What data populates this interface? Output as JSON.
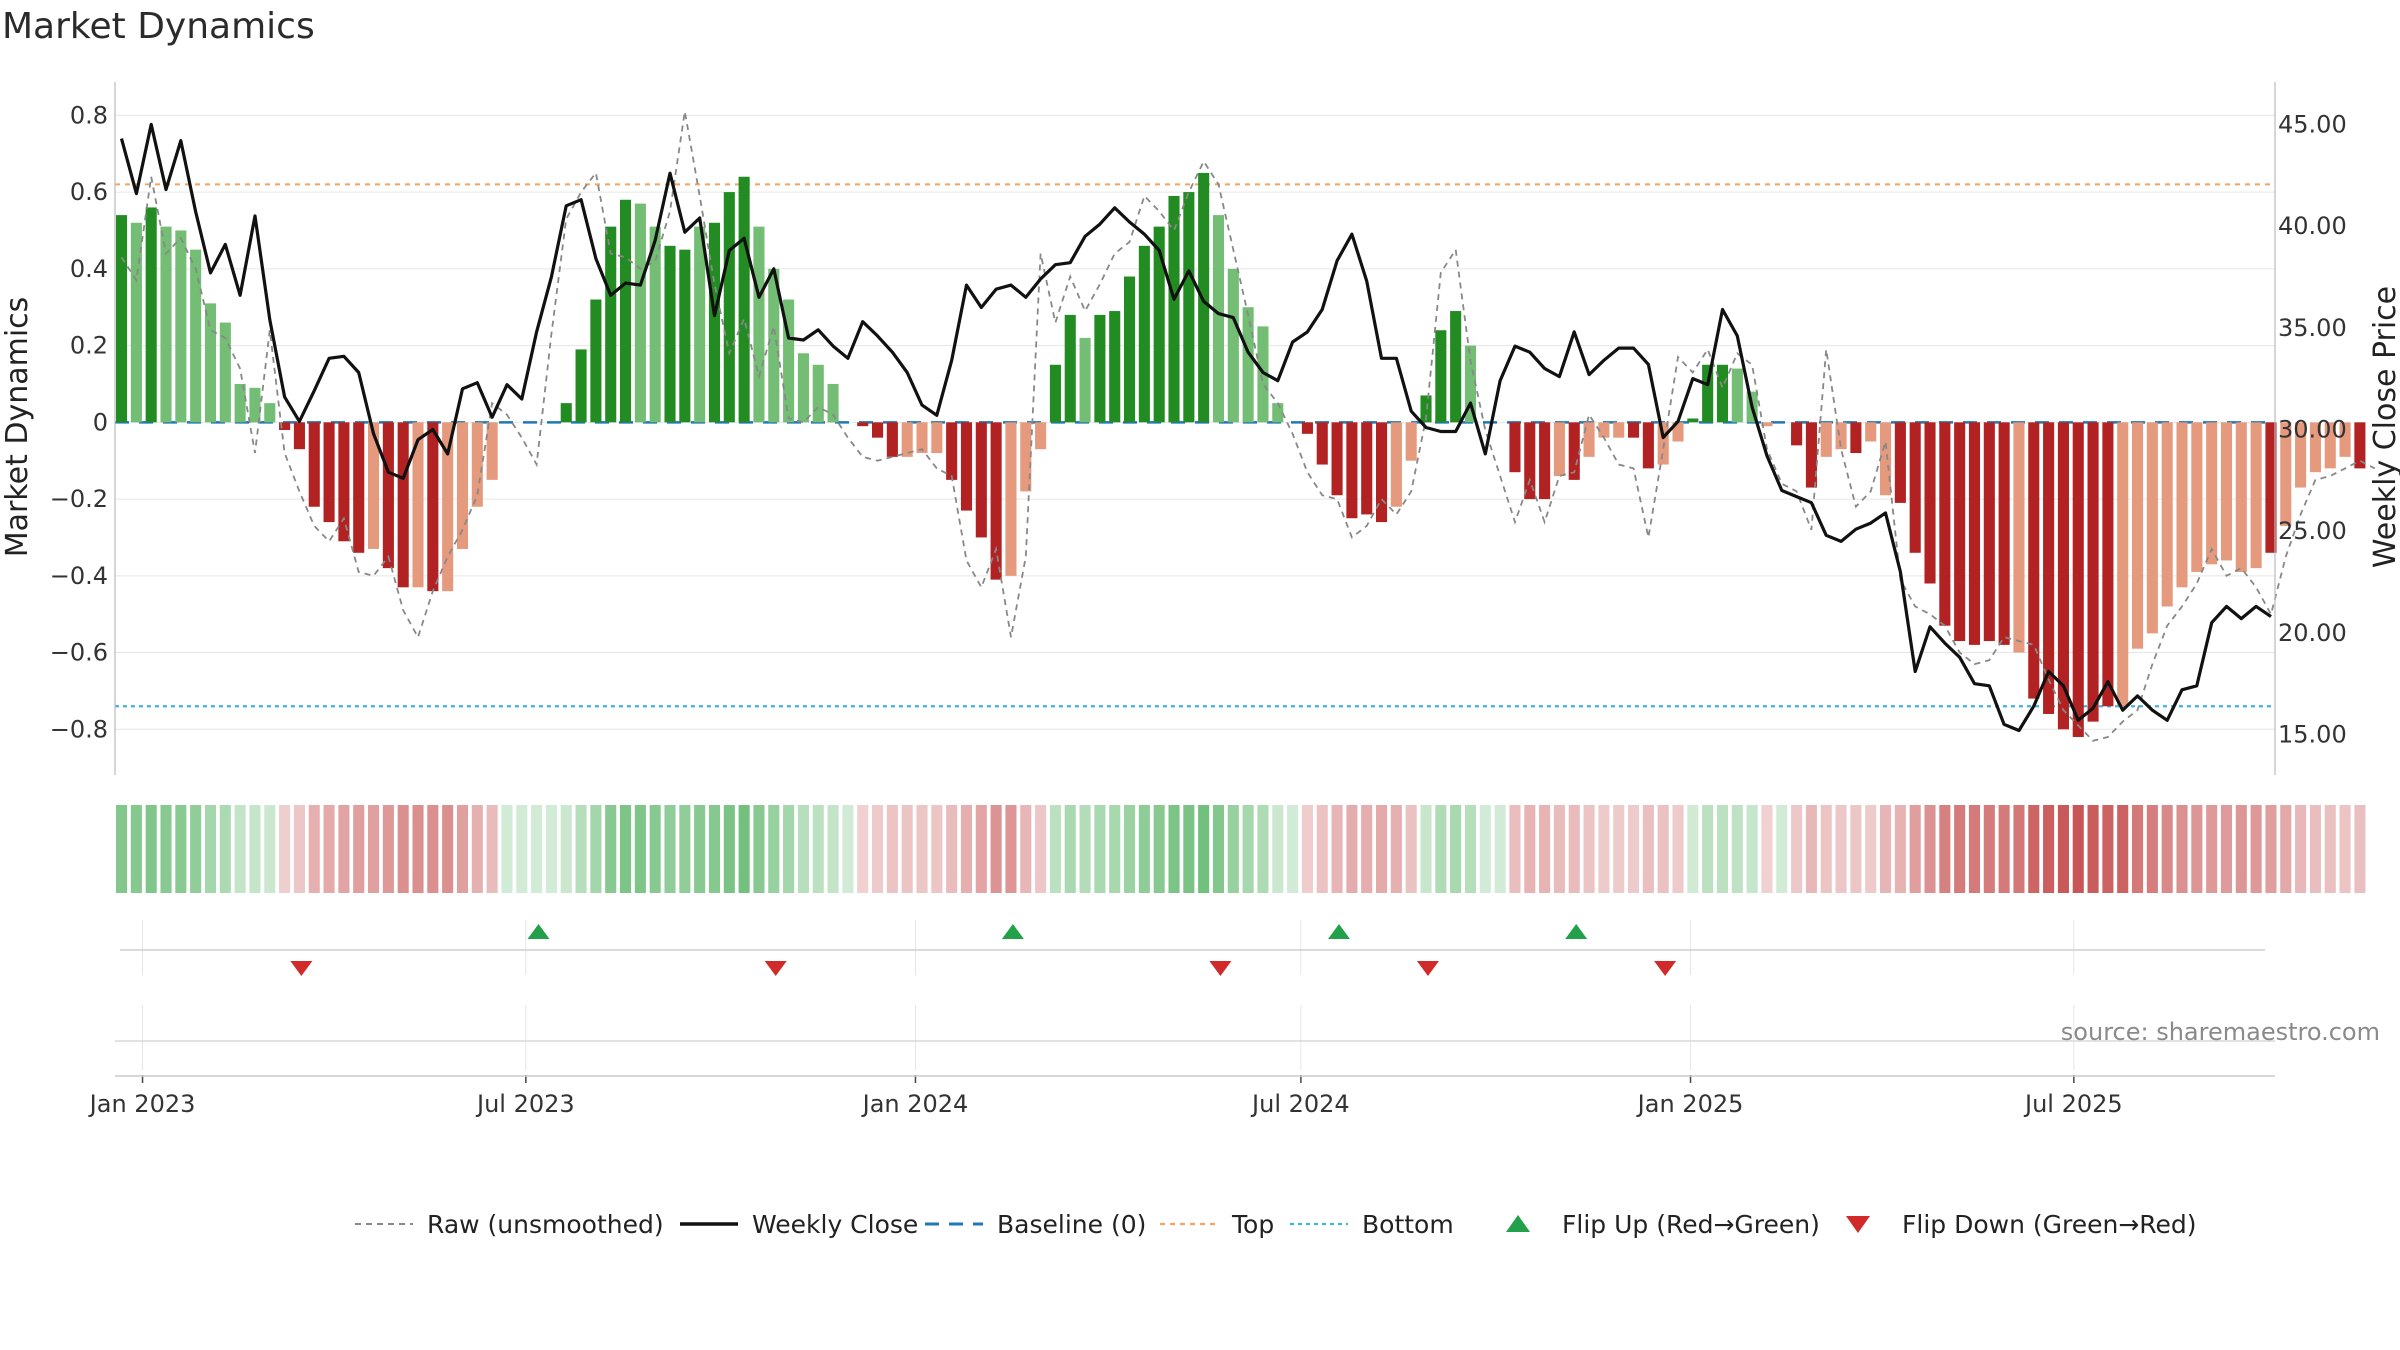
{
  "title": "Market Dynamics",
  "source": "source: sharemaestro.com",
  "chart_data": {
    "type": "bar",
    "ylabel_left": "Market Dynamics",
    "ylabel_right": "Weekly Close Price",
    "ylim_left": [
      -0.88,
      0.84
    ],
    "ylim_right": [
      13.75,
      46.2
    ],
    "yticks_left": [
      0.8,
      0.6,
      0.4,
      0.2,
      0,
      -0.2,
      -0.4,
      -0.6,
      -0.8
    ],
    "ytick_labels_left": [
      "0.8",
      "0.6",
      "0.4",
      "0.2",
      "0",
      "−0.2",
      "−0.4",
      "−0.6",
      "−0.8"
    ],
    "yticks_right": [
      45,
      40,
      35,
      30,
      25,
      20,
      15
    ],
    "ytick_labels_right": [
      "45.00",
      "40.00",
      "35.00",
      "30.00",
      "25.00",
      "20.00",
      "15.00"
    ],
    "x_start": "2022-12-19",
    "x_step_days": 7,
    "x_end": "2025-10-04",
    "xtick_dates": [
      "2023-01-01",
      "2023-07-01",
      "2024-01-01",
      "2024-07-01",
      "2025-01-01",
      "2025-07-01"
    ],
    "xtick_labels": [
      "Jan 2023",
      "Jul 2023",
      "Jan 2024",
      "Jul 2024",
      "Jan 2025",
      "Jul 2025"
    ],
    "grid": true,
    "reference_lines": {
      "baseline": 0,
      "top": 0.62,
      "bottom": -0.74
    },
    "colors": {
      "strong_green": "#228b22",
      "light_green": "#74bd74",
      "strong_red": "#b22222",
      "light_red": "#e59a7e",
      "weekly_close": "#111111",
      "raw": "#888888",
      "baseline": "#1f77b4",
      "top": "#f4a460",
      "bottom": "#40b4e0",
      "flip_up": "#22a04a",
      "flip_down": "#d02a2a"
    },
    "bar_values": [
      0.54,
      0.52,
      0.56,
      0.51,
      0.5,
      0.45,
      0.31,
      0.26,
      0.1,
      0.09,
      0.05,
      -0.02,
      -0.07,
      -0.22,
      -0.26,
      -0.31,
      -0.34,
      -0.33,
      -0.38,
      -0.43,
      -0.43,
      -0.44,
      -0.44,
      -0.33,
      -0.22,
      -0.15,
      0.0,
      0.0,
      0.0,
      0.0,
      0.05,
      0.19,
      0.32,
      0.51,
      0.58,
      0.57,
      0.51,
      0.46,
      0.45,
      0.51,
      0.52,
      0.6,
      0.64,
      0.51,
      0.4,
      0.32,
      0.18,
      0.15,
      0.1,
      0.0,
      -0.01,
      -0.04,
      -0.09,
      -0.09,
      -0.08,
      -0.08,
      -0.15,
      -0.23,
      -0.3,
      -0.41,
      -0.4,
      -0.18,
      -0.07,
      0.15,
      0.28,
      0.22,
      0.28,
      0.29,
      0.38,
      0.46,
      0.51,
      0.59,
      0.6,
      0.65,
      0.54,
      0.4,
      0.3,
      0.25,
      0.05,
      0.0,
      -0.03,
      -0.11,
      -0.19,
      -0.25,
      -0.24,
      -0.26,
      -0.22,
      -0.1,
      0.07,
      0.24,
      0.29,
      0.2,
      0.0,
      0.0,
      -0.13,
      -0.2,
      -0.2,
      -0.14,
      -0.15,
      -0.09,
      -0.04,
      -0.04,
      -0.04,
      -0.12,
      -0.11,
      -0.05,
      0.01,
      0.15,
      0.15,
      0.14,
      0.08,
      -0.01,
      0.0,
      -0.06,
      -0.17,
      -0.09,
      -0.07,
      -0.08,
      -0.05,
      -0.19,
      -0.21,
      -0.34,
      -0.42,
      -0.53,
      -0.57,
      -0.58,
      -0.57,
      -0.58,
      -0.6,
      -0.72,
      -0.76,
      -0.8,
      -0.82,
      -0.78,
      -0.74,
      -0.74,
      -0.59,
      -0.55,
      -0.48,
      -0.43,
      -0.39,
      -0.37,
      -0.36,
      -0.39,
      -0.38,
      -0.34,
      -0.27,
      -0.17,
      -0.13,
      -0.12,
      -0.09,
      -0.12
    ],
    "bar_strong": [
      1,
      0,
      1,
      0,
      0,
      0,
      0,
      0,
      0,
      0,
      0,
      1,
      1,
      1,
      1,
      1,
      1,
      0,
      1,
      1,
      0,
      1,
      0,
      0,
      0,
      0,
      0,
      0,
      0,
      0,
      1,
      1,
      1,
      1,
      1,
      0,
      0,
      1,
      1,
      0,
      1,
      1,
      1,
      0,
      0,
      0,
      0,
      0,
      0,
      0,
      1,
      1,
      1,
      0,
      0,
      0,
      1,
      1,
      1,
      1,
      0,
      0,
      0,
      1,
      1,
      0,
      1,
      1,
      1,
      1,
      1,
      1,
      1,
      1,
      0,
      0,
      0,
      0,
      0,
      0,
      1,
      1,
      1,
      1,
      1,
      1,
      0,
      0,
      1,
      1,
      1,
      0,
      0,
      0,
      1,
      1,
      1,
      0,
      1,
      0,
      0,
      0,
      1,
      1,
      0,
      0,
      1,
      1,
      1,
      0,
      0,
      0,
      0,
      1,
      1,
      0,
      0,
      1,
      0,
      0,
      1,
      1,
      1,
      1,
      1,
      1,
      1,
      1,
      0,
      1,
      1,
      1,
      1,
      1,
      1,
      0,
      0,
      0,
      0,
      0,
      0,
      0,
      0,
      0,
      0,
      1,
      0,
      0,
      0,
      0,
      0,
      1
    ],
    "weekly_close": [
      44.3,
      41.6,
      45.0,
      41.8,
      44.2,
      40.7,
      37.7,
      39.1,
      36.6,
      40.5,
      35.4,
      31.6,
      30.4,
      31.9,
      33.5,
      33.6,
      32.8,
      29.8,
      27.9,
      27.6,
      29.5,
      30.0,
      28.8,
      32.0,
      32.3,
      30.6,
      32.2,
      31.5,
      34.8,
      37.5,
      41.0,
      41.3,
      38.4,
      36.6,
      37.2,
      37.1,
      39.3,
      42.6,
      39.7,
      40.4,
      35.6,
      38.8,
      39.4,
      36.5,
      37.9,
      34.5,
      34.4,
      34.9,
      34.1,
      33.5,
      35.3,
      34.6,
      33.8,
      32.8,
      31.2,
      30.7,
      33.4,
      37.1,
      36.0,
      36.9,
      37.1,
      36.5,
      37.4,
      38.1,
      38.2,
      39.5,
      40.1,
      40.9,
      40.2,
      39.6,
      38.8,
      36.4,
      37.8,
      36.3,
      35.7,
      35.5,
      33.8,
      32.8,
      32.4,
      34.3,
      34.8,
      35.9,
      38.3,
      39.6,
      37.3,
      33.5,
      33.5,
      30.9,
      30.1,
      29.9,
      29.9,
      31.3,
      28.8,
      32.4,
      34.1,
      33.8,
      33.0,
      32.6,
      34.8,
      32.7,
      33.4,
      34.0,
      34.0,
      33.2,
      29.6,
      30.4,
      32.5,
      32.2,
      35.9,
      34.6,
      31.1,
      28.7,
      27.0,
      26.7,
      26.4,
      24.8,
      24.5,
      25.1,
      25.4,
      25.9,
      23.0,
      18.1,
      20.3,
      19.5,
      18.8,
      17.5,
      17.4,
      15.5,
      15.2,
      16.4,
      18.1,
      17.4,
      15.7,
      16.3,
      17.6,
      16.2,
      16.9,
      16.2,
      15.7,
      17.2,
      17.4,
      20.5,
      21.3,
      20.7,
      21.3,
      20.8
    ],
    "raw": [
      0.43,
      0.37,
      0.64,
      0.44,
      0.48,
      0.4,
      0.24,
      0.22,
      0.14,
      -0.08,
      0.24,
      -0.08,
      -0.18,
      -0.27,
      -0.31,
      -0.25,
      -0.39,
      -0.4,
      -0.35,
      -0.49,
      -0.56,
      -0.44,
      -0.35,
      -0.28,
      -0.19,
      0.05,
      0.02,
      -0.04,
      -0.11,
      0.23,
      0.53,
      0.6,
      0.65,
      0.44,
      0.43,
      0.4,
      0.42,
      0.55,
      0.81,
      0.59,
      0.36,
      0.18,
      0.27,
      0.12,
      0.25,
      0.01,
      0.0,
      0.04,
      0.02,
      -0.04,
      -0.09,
      -0.1,
      -0.09,
      -0.08,
      -0.07,
      -0.12,
      -0.14,
      -0.36,
      -0.43,
      -0.33,
      -0.56,
      -0.35,
      0.44,
      0.26,
      0.38,
      0.29,
      0.36,
      0.44,
      0.47,
      0.59,
      0.55,
      0.5,
      0.6,
      0.68,
      0.62,
      0.45,
      0.28,
      0.1,
      0.05,
      -0.03,
      -0.13,
      -0.19,
      -0.2,
      -0.3,
      -0.27,
      -0.2,
      -0.24,
      -0.18,
      0.01,
      0.39,
      0.45,
      0.16,
      -0.02,
      -0.14,
      -0.26,
      -0.15,
      -0.26,
      -0.14,
      -0.13,
      0.02,
      -0.04,
      -0.11,
      -0.12,
      -0.3,
      -0.07,
      0.17,
      0.13,
      0.19,
      0.09,
      0.18,
      0.15,
      -0.07,
      -0.16,
      -0.18,
      -0.28,
      0.19,
      -0.07,
      -0.22,
      -0.18,
      -0.05,
      -0.41,
      -0.48,
      -0.5,
      -0.53,
      -0.6,
      -0.63,
      -0.62,
      -0.56,
      -0.57,
      -0.58,
      -0.67,
      -0.75,
      -0.79,
      -0.83,
      -0.82,
      -0.78,
      -0.75,
      -0.63,
      -0.53,
      -0.48,
      -0.42,
      -0.33,
      -0.4,
      -0.38,
      -0.43,
      -0.5,
      -0.35,
      -0.24,
      -0.15,
      -0.14,
      -0.12,
      -0.1,
      -0.12
    ],
    "strength_strip": [
      0.54,
      0.52,
      0.56,
      0.51,
      0.5,
      0.45,
      0.31,
      0.26,
      0.1,
      0.09,
      0.05,
      -0.02,
      -0.07,
      -0.22,
      -0.26,
      -0.31,
      -0.34,
      -0.33,
      -0.38,
      -0.43,
      -0.43,
      -0.44,
      -0.44,
      -0.33,
      -0.22,
      -0.15,
      0.0,
      0.0,
      0.0,
      0.0,
      0.05,
      0.19,
      0.32,
      0.51,
      0.58,
      0.57,
      0.51,
      0.46,
      0.45,
      0.51,
      0.52,
      0.6,
      0.64,
      0.51,
      0.4,
      0.32,
      0.18,
      0.15,
      0.1,
      0.0,
      -0.01,
      -0.04,
      -0.09,
      -0.09,
      -0.08,
      -0.08,
      -0.15,
      -0.23,
      -0.3,
      -0.41,
      -0.4,
      -0.18,
      -0.07,
      0.15,
      0.28,
      0.22,
      0.28,
      0.29,
      0.38,
      0.46,
      0.51,
      0.59,
      0.6,
      0.65,
      0.54,
      0.4,
      0.3,
      0.25,
      0.05,
      0.0,
      -0.03,
      -0.11,
      -0.19,
      -0.25,
      -0.24,
      -0.26,
      -0.22,
      -0.1,
      0.07,
      0.24,
      0.29,
      0.2,
      0.0,
      0.0,
      -0.13,
      -0.2,
      -0.2,
      -0.14,
      -0.15,
      -0.09,
      -0.04,
      -0.04,
      -0.04,
      -0.12,
      -0.11,
      -0.05,
      0.01,
      0.15,
      0.15,
      0.14,
      0.08,
      -0.01,
      0.0,
      -0.06,
      -0.17,
      -0.09,
      -0.07,
      -0.08,
      -0.05,
      -0.19,
      -0.21,
      -0.34,
      -0.42,
      -0.53,
      -0.57,
      -0.58,
      -0.57,
      -0.58,
      -0.6,
      -0.72,
      -0.76,
      -0.8,
      -0.82,
      -0.78,
      -0.74,
      -0.74,
      -0.59,
      -0.55,
      -0.48,
      -0.43,
      -0.39,
      -0.37,
      -0.36,
      -0.39,
      -0.38,
      -0.34,
      -0.27,
      -0.17,
      -0.13,
      -0.12,
      -0.09,
      -0.12
    ],
    "flip_up_dates": [
      "2023-07-07",
      "2024-02-16",
      "2024-07-19",
      "2024-11-08"
    ],
    "flip_down_dates": [
      "2023-03-17",
      "2023-10-27",
      "2024-05-24",
      "2024-08-30",
      "2024-12-20"
    ],
    "legend": {
      "position": "bottom-center",
      "entries": [
        {
          "key": "raw",
          "label": "Raw (unsmoothed)"
        },
        {
          "key": "close",
          "label": "Weekly Close"
        },
        {
          "key": "baseline",
          "label": "Baseline (0)"
        },
        {
          "key": "top",
          "label": "Top"
        },
        {
          "key": "bottom",
          "label": "Bottom"
        },
        {
          "key": "flip_up",
          "label": "Flip Up (Red→Green)"
        },
        {
          "key": "flip_down",
          "label": "Flip Down (Green→Red)"
        }
      ]
    }
  }
}
